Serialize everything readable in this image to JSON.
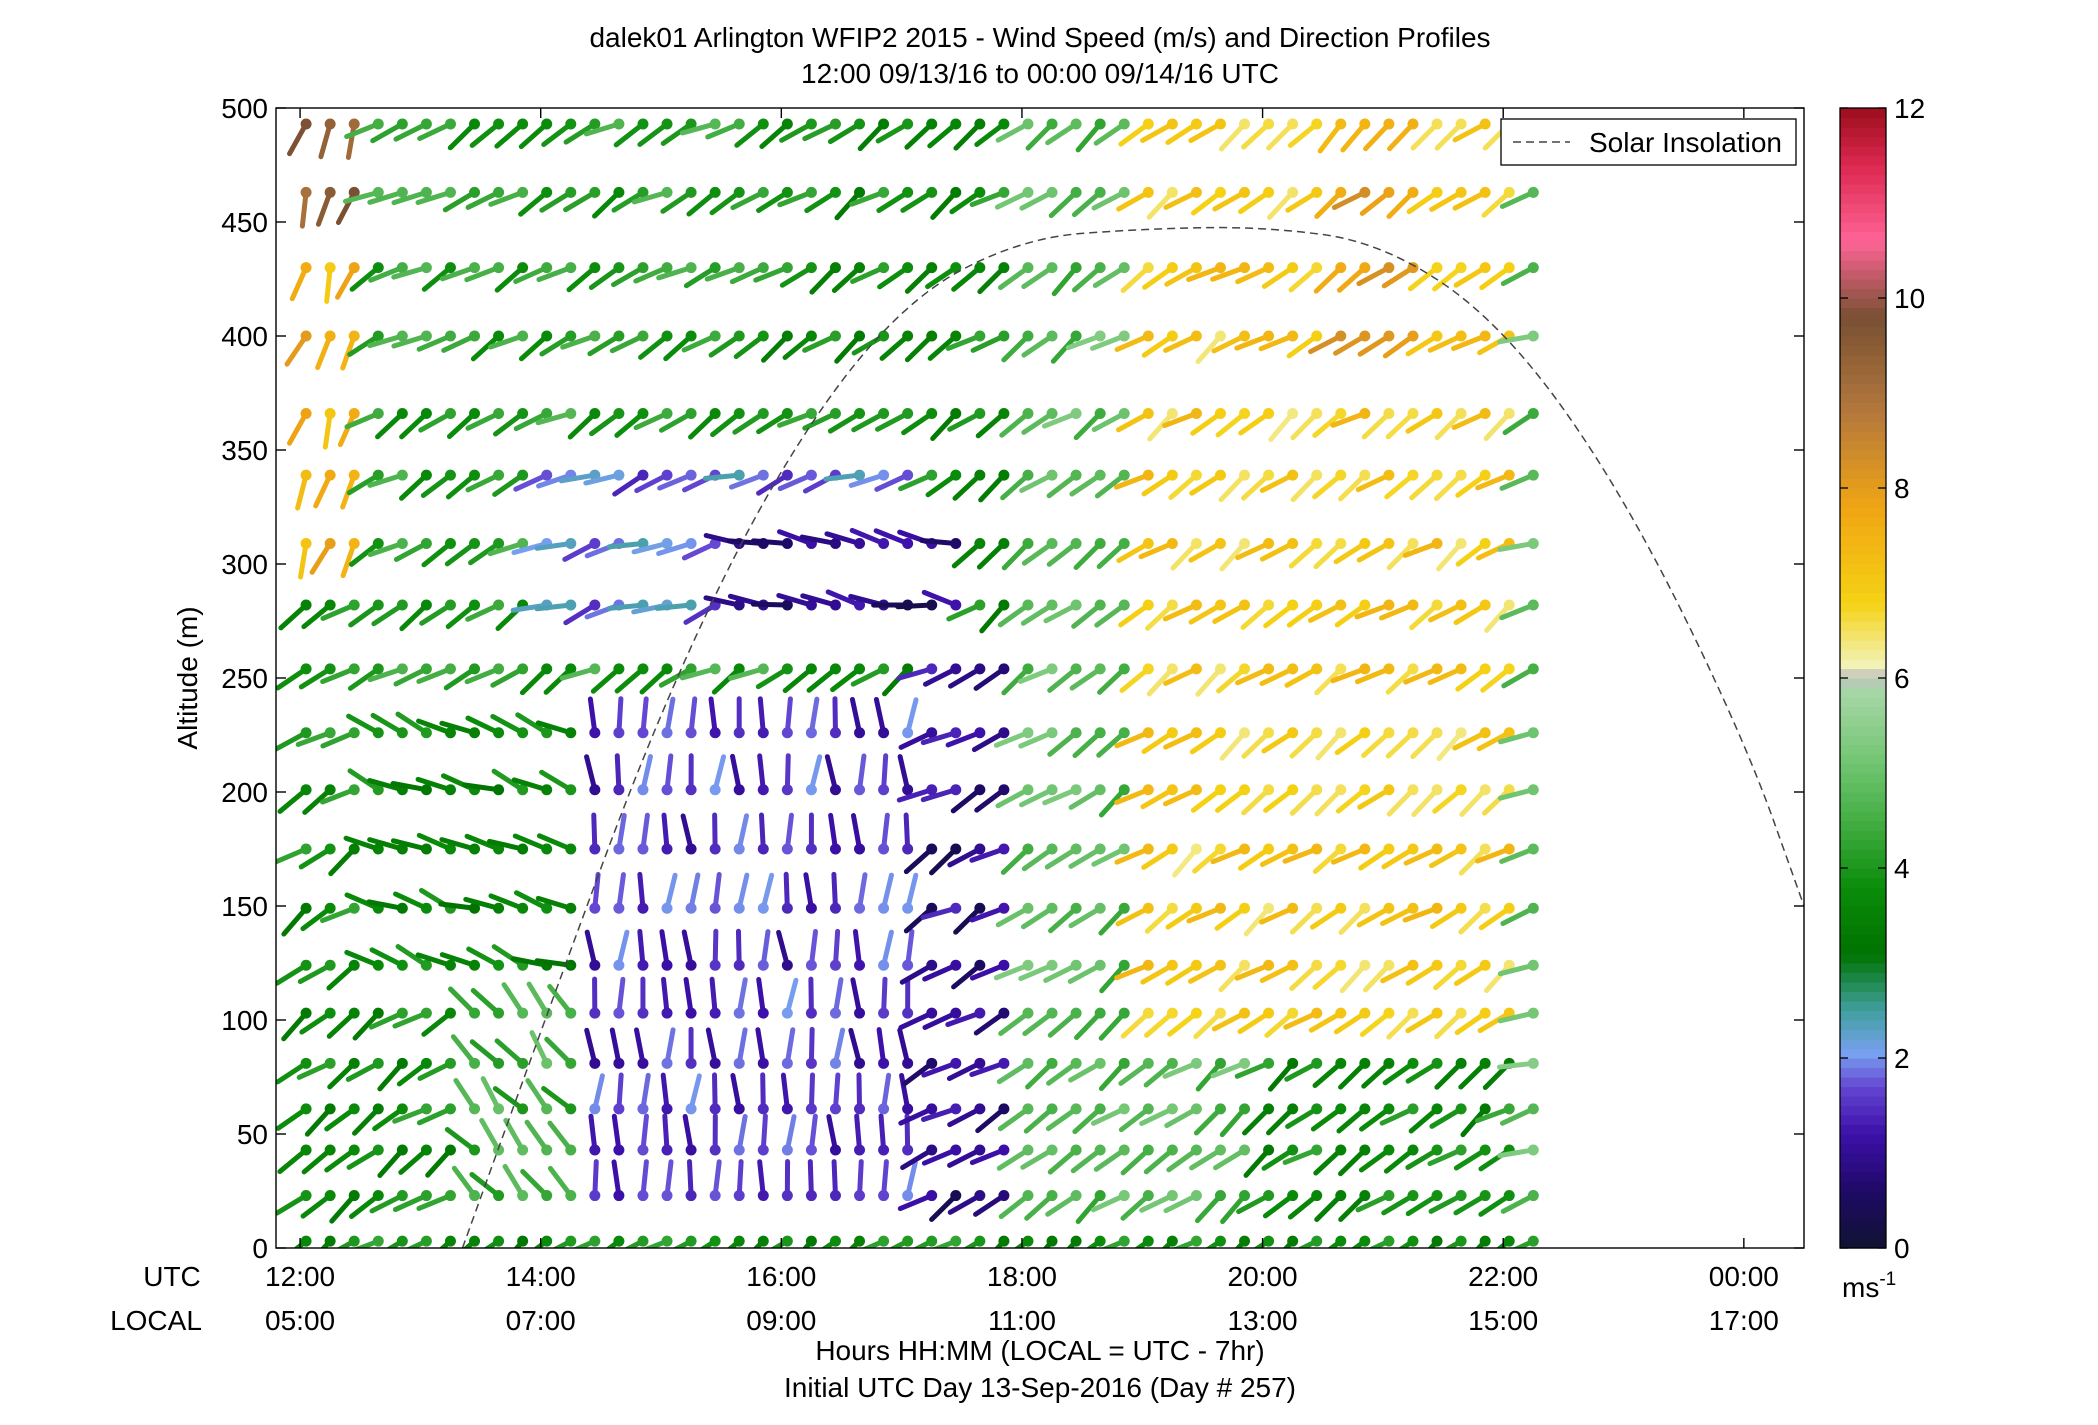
{
  "chart_data": {
    "type": "wind_barb_profile",
    "title_line1": "dalek01 Arlington WFIP2 2015 - Wind Speed (m/s) and Direction Profiles",
    "title_line2": "12:00 09/13/16 to 00:00 09/14/16  UTC",
    "ylabel": "Altitude (m)",
    "xlabel": "Hours HH:MM  (LOCAL = UTC - 7hr)",
    "xlabel2": "Initial UTC Day 13-Sep-2016 (Day # 257)",
    "utc_label": "UTC",
    "local_label": "LOCAL",
    "ylim": [
      0,
      500
    ],
    "xlim_hours": [
      11.8,
      24.5
    ],
    "y_ticks": [
      "0",
      "50",
      "100",
      "150",
      "200",
      "250",
      "300",
      "350",
      "400",
      "450",
      "500"
    ],
    "x_ticks_utc": [
      "12:00",
      "14:00",
      "16:00",
      "18:00",
      "20:00",
      "22:00",
      "00:00"
    ],
    "x_ticks_local": [
      "05:00",
      "07:00",
      "09:00",
      "11:00",
      "13:00",
      "15:00",
      "17:00"
    ],
    "x_tick_hours": [
      12,
      14,
      16,
      18,
      20,
      22,
      24
    ],
    "legend": {
      "entries": [
        "Solar Insolation"
      ],
      "position": "top-right"
    },
    "solar_insolation_peak": {
      "hour": 20.0,
      "altitude": 448
    },
    "solar_insolation_curve": [
      [
        13.35,
        0
      ],
      [
        14,
        95
      ],
      [
        15,
        238
      ],
      [
        16,
        345
      ],
      [
        17,
        415
      ],
      [
        18,
        443
      ],
      [
        19,
        447
      ],
      [
        20,
        448
      ],
      [
        21,
        441
      ],
      [
        22,
        405
      ],
      [
        23,
        331
      ],
      [
        24,
        224
      ],
      [
        24.5,
        150
      ]
    ],
    "colorbar": {
      "label": "ms",
      "label_exponent": "-1",
      "ticks": [
        "0",
        "2",
        "4",
        "6",
        "8",
        "10",
        "12"
      ],
      "range": [
        0,
        12
      ],
      "stops": [
        {
          "v": 0,
          "c": "#8c8c8c"
        },
        {
          "v": 0.05,
          "c": "#121236"
        },
        {
          "v": 0.6,
          "c": "#1e0a66"
        },
        {
          "v": 1.2,
          "c": "#3c0fa8"
        },
        {
          "v": 1.7,
          "c": "#6446d2"
        },
        {
          "v": 2.05,
          "c": "#78a0f0"
        },
        {
          "v": 2.5,
          "c": "#41a0a0"
        },
        {
          "v": 3.1,
          "c": "#007300"
        },
        {
          "v": 3.8,
          "c": "#0a8c0a"
        },
        {
          "v": 4.4,
          "c": "#3caa3c"
        },
        {
          "v": 5.2,
          "c": "#78c878"
        },
        {
          "v": 5.9,
          "c": "#aad7aa"
        },
        {
          "v": 6.0,
          "c": "#bebebe"
        },
        {
          "v": 6.15,
          "c": "#f2f2b4"
        },
        {
          "v": 6.8,
          "c": "#f5d214"
        },
        {
          "v": 7.8,
          "c": "#f0a514"
        },
        {
          "v": 8.8,
          "c": "#b4783c"
        },
        {
          "v": 9.8,
          "c": "#785032"
        },
        {
          "v": 10.6,
          "c": "#ff6496"
        },
        {
          "v": 11.4,
          "c": "#dc2850"
        },
        {
          "v": 11.95,
          "c": "#a01020"
        },
        {
          "v": 12,
          "c": "#8c8c8c"
        }
      ]
    },
    "barb_heights_m": [
      3,
      23,
      43,
      61,
      81,
      103,
      124,
      149,
      175,
      201,
      226,
      254,
      282,
      309,
      339,
      366,
      400,
      430,
      463,
      493
    ],
    "barb_time_start_hours": 12.05,
    "barb_time_step_hours": 0.2,
    "barb_count_per_row": 52,
    "speed_regions": [
      {
        "h": [
          12.0,
          12.6
        ],
        "z": [
          290,
          500
        ],
        "speed": 7.5,
        "dir_deg": 200
      },
      {
        "h": [
          12.0,
          12.6
        ],
        "z": [
          460,
          500
        ],
        "speed": 9.5,
        "dir_deg": 200
      },
      {
        "h": [
          12.6,
          16.0
        ],
        "z": [
          250,
          500
        ],
        "speed": 4.2,
        "dir_deg": 240
      },
      {
        "h": [
          14.0,
          17.2
        ],
        "z": [
          280,
          360
        ],
        "speed": 1.9,
        "dir_deg": 250
      },
      {
        "h": [
          15.5,
          17.5
        ],
        "z": [
          260,
          320
        ],
        "speed": 0.8,
        "dir_deg": 280
      },
      {
        "h": [
          12.6,
          15.8
        ],
        "z": [
          120,
          240
        ],
        "speed": 3.6,
        "dir_deg": 290
      },
      {
        "h": [
          13.4,
          14.4
        ],
        "z": [
          20,
          110
        ],
        "speed": 4.5,
        "dir_deg": 320
      },
      {
        "h": [
          14.4,
          17.4
        ],
        "z": [
          20,
          240
        ],
        "speed": 1.5,
        "dir_deg": 0
      },
      {
        "h": [
          17.2,
          18.0
        ],
        "z": [
          20,
          260
        ],
        "speed": 0.9,
        "dir_deg": 240
      },
      {
        "h": [
          18.0,
          20.0
        ],
        "z": [
          20,
          500
        ],
        "speed": 4.8,
        "dir_deg": 235
      },
      {
        "h": [
          19.0,
          22.2
        ],
        "z": [
          100,
          500
        ],
        "speed": 6.9,
        "dir_deg": 235
      },
      {
        "h": [
          20.5,
          21.3
        ],
        "z": [
          380,
          500
        ],
        "speed": 7.8,
        "dir_deg": 230
      },
      {
        "h": [
          22.2,
          24.2
        ],
        "z": [
          20,
          500
        ],
        "speed": 4.9,
        "dir_deg": 250
      }
    ]
  }
}
